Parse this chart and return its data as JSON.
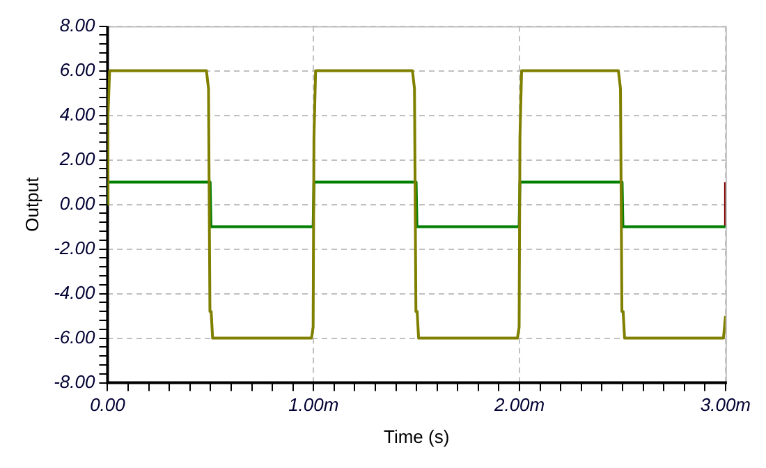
{
  "chart_data": {
    "type": "line",
    "xlabel": "Time (s)",
    "ylabel": "Output",
    "series": [
      {
        "color": "#808000",
        "x": [
          0,
          0.002,
          0.01,
          0.48,
          0.49,
          0.497,
          0.503,
          0.51,
          0.99,
          0.998,
          1.002,
          1.01,
          1.48,
          1.49,
          1.497,
          1.503,
          1.51,
          1.99,
          1.998,
          2.002,
          2.01,
          2.48,
          2.49,
          2.497,
          2.503,
          2.51,
          2.99,
          3
        ],
        "values": [
          0,
          4,
          6,
          6,
          5.2,
          -4.8,
          -4.8,
          -6,
          -6,
          -5.5,
          3,
          6,
          6,
          5.2,
          -4.8,
          -4.8,
          -6,
          -6,
          -5.5,
          3,
          6,
          6,
          5.2,
          -4.8,
          -4.8,
          -6,
          -6,
          -5
        ]
      },
      {
        "color": "#008000",
        "x": [
          0,
          0.002,
          0.498,
          0.502,
          0.998,
          1.002,
          1.498,
          1.502,
          1.998,
          2.002,
          2.498,
          2.502,
          3
        ],
        "values": [
          0,
          1,
          1,
          -1,
          -1,
          1,
          1,
          -1,
          -1,
          1,
          1,
          -1,
          -1
        ]
      },
      {
        "color": "#800000",
        "x": [
          3,
          3
        ],
        "values": [
          -1,
          1
        ]
      }
    ],
    "xlim": [
      0,
      3
    ],
    "xticks": [
      {
        "value": 0,
        "label": "0.00"
      },
      {
        "value": 0.1,
        "label": null
      },
      {
        "value": 0.2,
        "label": null
      },
      {
        "value": 0.3,
        "label": null
      },
      {
        "value": 0.4,
        "label": null
      },
      {
        "value": 0.5,
        "label": null
      },
      {
        "value": 0.6,
        "label": null
      },
      {
        "value": 0.7,
        "label": null
      },
      {
        "value": 0.8,
        "label": null
      },
      {
        "value": 0.9,
        "label": null
      },
      {
        "value": 1,
        "label": "1.00m"
      },
      {
        "value": 1.1,
        "label": null
      },
      {
        "value": 1.2,
        "label": null
      },
      {
        "value": 1.3,
        "label": null
      },
      {
        "value": 1.4,
        "label": null
      },
      {
        "value": 1.5,
        "label": null
      },
      {
        "value": 1.6,
        "label": null
      },
      {
        "value": 1.7,
        "label": null
      },
      {
        "value": 1.8,
        "label": null
      },
      {
        "value": 1.9,
        "label": null
      },
      {
        "value": 2,
        "label": "2.00m"
      },
      {
        "value": 2.1,
        "label": null
      },
      {
        "value": 2.2,
        "label": null
      },
      {
        "value": 2.3,
        "label": null
      },
      {
        "value": 2.4,
        "label": null
      },
      {
        "value": 2.5,
        "label": null
      },
      {
        "value": 2.6,
        "label": null
      },
      {
        "value": 2.7,
        "label": null
      },
      {
        "value": 2.8,
        "label": null
      },
      {
        "value": 2.9,
        "label": null
      },
      {
        "value": 3,
        "label": "3.00m"
      }
    ],
    "ylim": [
      -8,
      8
    ],
    "yticks": [
      {
        "value": -8,
        "label": "-8.00"
      },
      {
        "value": -7.6,
        "label": null
      },
      {
        "value": -7.2,
        "label": null
      },
      {
        "value": -6.8,
        "label": null
      },
      {
        "value": -6.4,
        "label": null
      },
      {
        "value": -6,
        "label": "-6.00"
      },
      {
        "value": -5.6,
        "label": null
      },
      {
        "value": -5.2,
        "label": null
      },
      {
        "value": -4.8,
        "label": null
      },
      {
        "value": -4.4,
        "label": null
      },
      {
        "value": -4,
        "label": "-4.00"
      },
      {
        "value": -3.6,
        "label": null
      },
      {
        "value": -3.2,
        "label": null
      },
      {
        "value": -2.8,
        "label": null
      },
      {
        "value": -2.4,
        "label": null
      },
      {
        "value": -2,
        "label": "-2.00"
      },
      {
        "value": -1.6,
        "label": null
      },
      {
        "value": -1.2,
        "label": null
      },
      {
        "value": -0.8,
        "label": null
      },
      {
        "value": -0.4,
        "label": null
      },
      {
        "value": 0,
        "label": "0.00"
      },
      {
        "value": 0.4,
        "label": null
      },
      {
        "value": 0.8,
        "label": null
      },
      {
        "value": 1.2,
        "label": null
      },
      {
        "value": 1.6,
        "label": null
      },
      {
        "value": 2,
        "label": "2.00"
      },
      {
        "value": 2.4,
        "label": null
      },
      {
        "value": 2.8,
        "label": null
      },
      {
        "value": 3.2,
        "label": null
      },
      {
        "value": 3.6,
        "label": null
      },
      {
        "value": 4,
        "label": "4.00"
      },
      {
        "value": 4.4,
        "label": null
      },
      {
        "value": 4.8,
        "label": null
      },
      {
        "value": 5.2,
        "label": null
      },
      {
        "value": 5.6,
        "label": null
      },
      {
        "value": 6,
        "label": "6.00"
      },
      {
        "value": 6.4,
        "label": null
      },
      {
        "value": 6.8,
        "label": null
      },
      {
        "value": 7.2,
        "label": null
      },
      {
        "value": 7.6,
        "label": null
      },
      {
        "value": 8,
        "label": "8.00"
      }
    ],
    "grid": true,
    "legend": false,
    "marker": "none",
    "line_style": "solid"
  }
}
